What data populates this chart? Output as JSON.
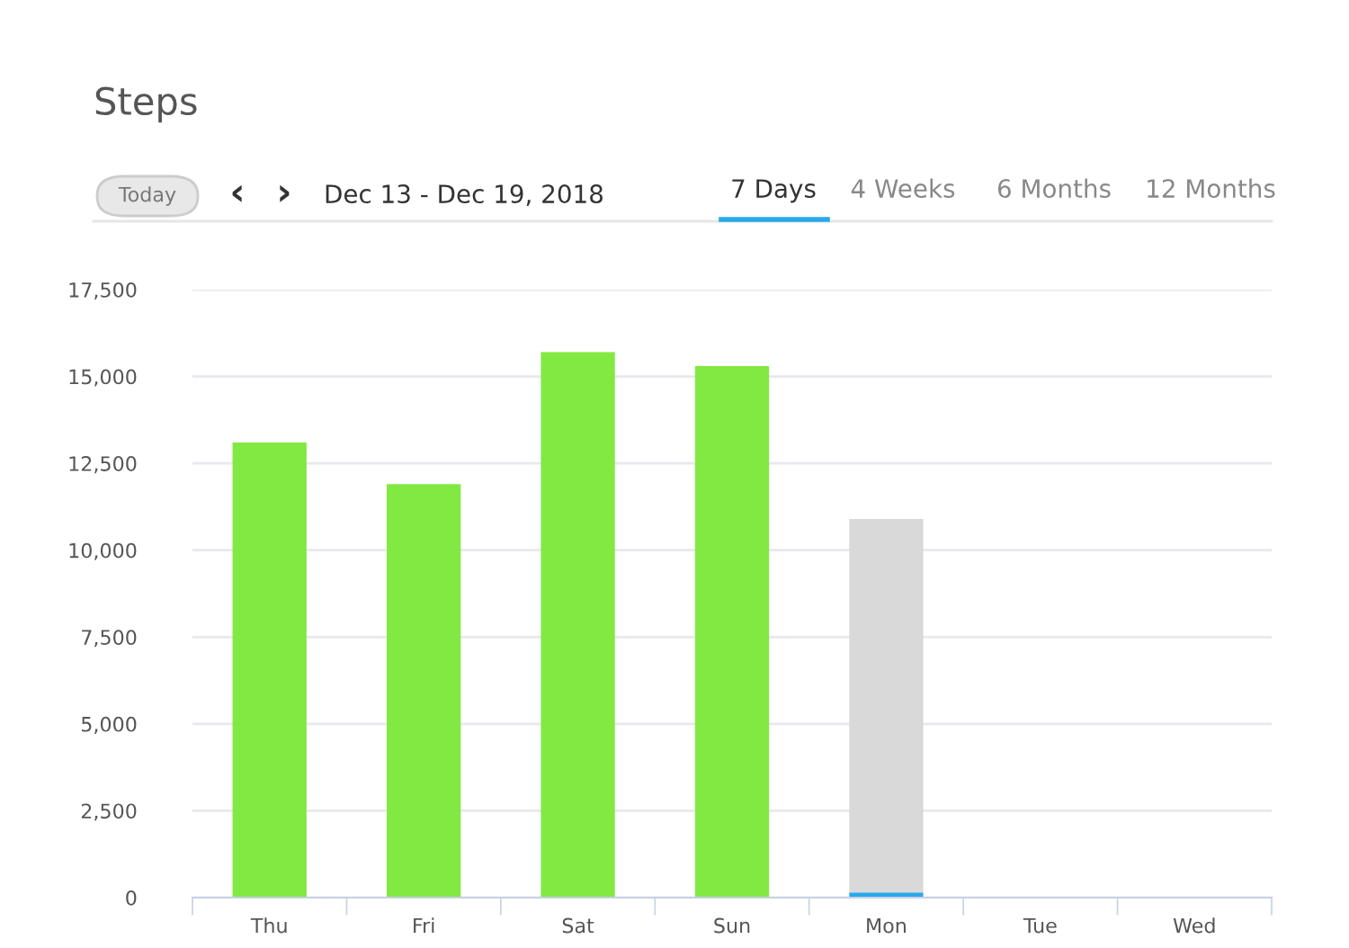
{
  "chart_data": {
    "type": "bar",
    "title": "Steps",
    "subtitle": "Dec 13 - Dec 19, 2018",
    "annotations": [
      "Today",
      "‹",
      "›",
      "7 Days",
      "4 Weeks",
      "6 Months",
      "12 Months"
    ],
    "categories": [
      "Thu",
      "Fri",
      "Sat",
      "Sun",
      "Mon",
      "Tue",
      "Wed"
    ],
    "stacked": true,
    "series": [
      {
        "colors": [
          "#82e842",
          "#82e842",
          "#82e842",
          "#82e842",
          "#29a8e8",
          "#82e842",
          "#82e842"
        ],
        "values": [
          13100,
          11900,
          15700,
          15300,
          150,
          null,
          null
        ]
      },
      {
        "color": "#d9d9d9",
        "values": [
          null,
          null,
          null,
          null,
          10750,
          null,
          null
        ]
      }
    ],
    "ylim": [
      0,
      17500
    ],
    "yticks": [
      {
        "value": 0,
        "label": "0"
      },
      {
        "value": 2500,
        "label": "2,500"
      },
      {
        "value": 5000,
        "label": "5,000"
      },
      {
        "value": 7500,
        "label": "7,500"
      },
      {
        "value": 10000,
        "label": "10,000"
      },
      {
        "value": 12500,
        "label": "12,500"
      },
      {
        "value": 15000,
        "label": "15,000"
      },
      {
        "value": 17500,
        "label": "17,500"
      }
    ],
    "grid": "y",
    "legend": false
  }
}
